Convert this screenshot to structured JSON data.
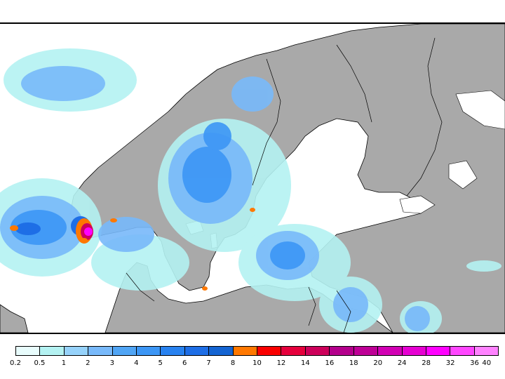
{
  "map": {
    "land_color": "#a9a9a9",
    "water_color": "#ffffff",
    "border_color": "#000000"
  },
  "legend": {
    "colors": [
      "#e8fcfc",
      "#b4f2f2",
      "#96d2fa",
      "#78b9fa",
      "#50a5f5",
      "#3c96f5",
      "#2882f0",
      "#1e6ee6",
      "#1464d2",
      "#ff7800",
      "#fa0000",
      "#e6003c",
      "#cd005a",
      "#b4008c",
      "#be0096",
      "#d200b4",
      "#e600d2",
      "#ff00ff",
      "#ff46ff",
      "#ff82ff"
    ],
    "labels": [
      "0.2",
      "0.5",
      "1",
      "2",
      "3",
      "4",
      "5",
      "6",
      "7",
      "8",
      "10",
      "12",
      "14",
      "16",
      "18",
      "20",
      "24",
      "28",
      "32",
      "36",
      "40"
    ]
  }
}
